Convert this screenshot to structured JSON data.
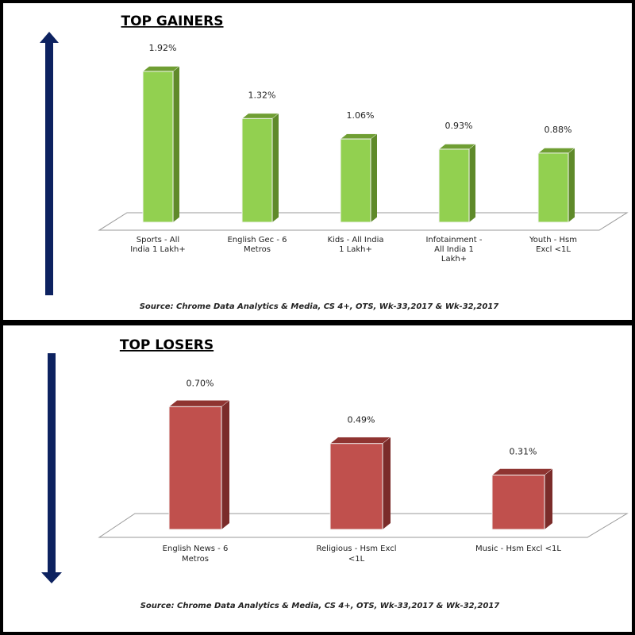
{
  "chart_data": [
    {
      "type": "bar",
      "title": "TOP GAINERS",
      "categories": [
        "Sports - All India 1 Lakh+",
        "English Gec - 6 Metros",
        "Kids - All India 1 Lakh+",
        "Infotainment - All India 1 Lakh+",
        "Youth - Hsm Excl <1L"
      ],
      "category_lines": [
        [
          "Sports - All",
          "India 1 Lakh+"
        ],
        [
          "English Gec - 6",
          "Metros"
        ],
        [
          "Kids - All India",
          "1 Lakh+"
        ],
        [
          "Infotainment -",
          "All India 1",
          "Lakh+"
        ],
        [
          "Youth - Hsm",
          "Excl <1L"
        ]
      ],
      "values": [
        1.92,
        1.32,
        1.06,
        0.93,
        0.88
      ],
      "data_labels": [
        "1.92%",
        "1.32%",
        "1.06%",
        "0.93%",
        "0.88%"
      ],
      "unit": "%",
      "style": "3d-column",
      "arrow": "up",
      "source": "Source: Chrome Data Analytics & Media, CS 4+,  OTS, Wk-33,2017 & Wk-32,2017",
      "colors": {
        "front": "#92d050",
        "side": "#5f8a2a",
        "top": "#6f9e33",
        "arrow": "#0d2260"
      }
    },
    {
      "type": "bar",
      "title": "TOP LOSERS",
      "categories": [
        "English News - 6 Metros",
        "Religious - Hsm Excl <1L",
        "Music - Hsm Excl <1L"
      ],
      "category_lines": [
        [
          "English News - 6",
          "Metros"
        ],
        [
          "Religious - Hsm Excl",
          "<1L"
        ],
        [
          "Music - Hsm Excl <1L"
        ]
      ],
      "values": [
        0.7,
        0.49,
        0.31
      ],
      "data_labels": [
        "0.70%",
        "0.49%",
        "0.31%"
      ],
      "unit": "%",
      "style": "3d-column",
      "arrow": "down",
      "source": "Source: Chrome Data Analytics & Media, CS 4+,  OTS, Wk-33,2017 & Wk-32,2017",
      "colors": {
        "front": "#c0504d",
        "side": "#7b2c2a",
        "top": "#8f3431",
        "arrow": "#0d2260"
      }
    }
  ]
}
